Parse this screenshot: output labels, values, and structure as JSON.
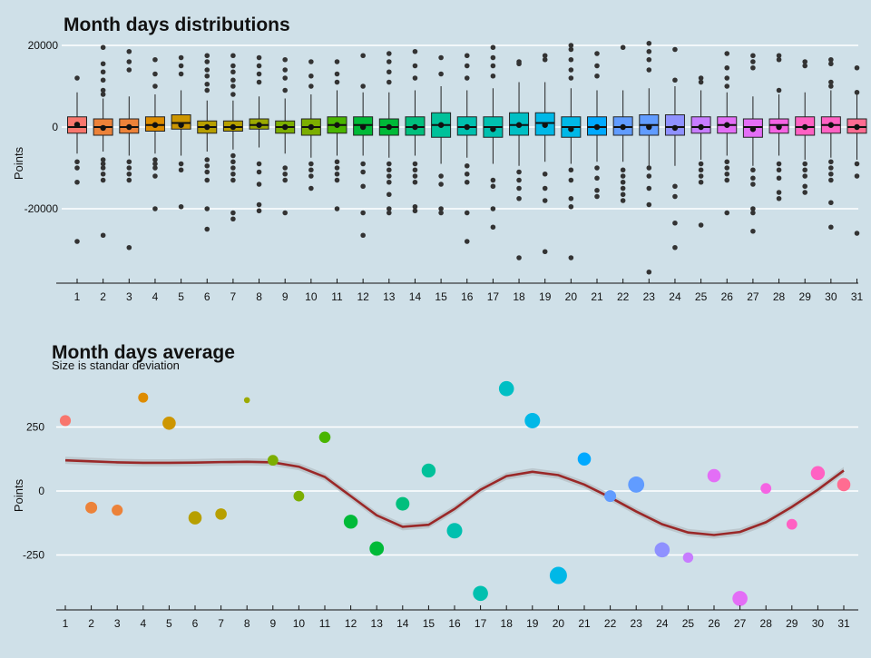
{
  "chart_data": [
    {
      "type": "box",
      "title": "Month days distributions",
      "xlabel": "",
      "ylabel": "Points",
      "ylim": [
        -38000,
        20500
      ],
      "y_ticks": [
        20000,
        0,
        -20000
      ],
      "y_tick_labels": [
        "20000",
        "0",
        "-20000"
      ],
      "grid": "horizontal",
      "legend": "none",
      "categories": [
        "1",
        "2",
        "3",
        "4",
        "5",
        "6",
        "7",
        "8",
        "9",
        "10",
        "11",
        "12",
        "13",
        "14",
        "15",
        "16",
        "17",
        "18",
        "19",
        "20",
        "21",
        "22",
        "23",
        "24",
        "25",
        "26",
        "27",
        "28",
        "29",
        "30",
        "31"
      ],
      "boxes": [
        {
          "q1": -1500,
          "median": 0,
          "q3": 2500,
          "whisker_low": -6500,
          "whisker_high": 8500,
          "mean": 600,
          "outliers": [
            12000,
            -8500,
            -10000,
            -13500,
            -28000
          ]
        },
        {
          "q1": -2000,
          "median": 0,
          "q3": 2000,
          "whisker_low": -6000,
          "whisker_high": 7000,
          "mean": -200,
          "outliers": [
            19500,
            15500,
            13500,
            11500,
            9000,
            8000,
            -8000,
            -9000,
            -10000,
            -11500,
            -13000,
            -26500
          ]
        },
        {
          "q1": -1500,
          "median": 0,
          "q3": 2000,
          "whisker_low": -7000,
          "whisker_high": 7500,
          "mean": 0,
          "outliers": [
            18500,
            16000,
            14000,
            -8500,
            -10000,
            -11500,
            -13000,
            -29500
          ]
        },
        {
          "q1": -1000,
          "median": 500,
          "q3": 2500,
          "whisker_low": -6500,
          "whisker_high": 8000,
          "mean": 500,
          "outliers": [
            16500,
            13000,
            10000,
            -8000,
            -9000,
            -10000,
            -12000,
            -20000
          ]
        },
        {
          "q1": -500,
          "median": 1000,
          "q3": 3000,
          "whisker_low": -7000,
          "whisker_high": 9000,
          "mean": 500,
          "outliers": [
            17000,
            15000,
            13000,
            -9000,
            -10500,
            -19500
          ]
        },
        {
          "q1": -1500,
          "median": 0,
          "q3": 1500,
          "whisker_low": -6000,
          "whisker_high": 6500,
          "mean": 0,
          "outliers": [
            17500,
            16000,
            14000,
            12500,
            10500,
            9000,
            -8000,
            -9500,
            -11000,
            -13000,
            -20000,
            -25000
          ]
        },
        {
          "q1": -1000,
          "median": 0,
          "q3": 1500,
          "whisker_low": -5500,
          "whisker_high": 6500,
          "mean": 0,
          "outliers": [
            17500,
            15000,
            13500,
            11500,
            10000,
            8000,
            -7000,
            -8500,
            -10000,
            -11500,
            -13000,
            -21000,
            -22500
          ]
        },
        {
          "q1": -500,
          "median": 500,
          "q3": 2000,
          "whisker_low": -5000,
          "whisker_high": 7500,
          "mean": 500,
          "outliers": [
            17000,
            15000,
            13000,
            11000,
            -9000,
            -11000,
            -14000,
            -19000,
            -20500
          ]
        },
        {
          "q1": -1500,
          "median": 0,
          "q3": 1500,
          "whisker_low": -6500,
          "whisker_high": 7000,
          "mean": 0,
          "outliers": [
            16500,
            14000,
            12000,
            9000,
            -10000,
            -11500,
            -13000,
            -21000
          ]
        },
        {
          "q1": -2000,
          "median": 0,
          "q3": 2000,
          "whisker_low": -7500,
          "whisker_high": 8000,
          "mean": 0,
          "outliers": [
            16000,
            12500,
            10000,
            -9000,
            -10500,
            -12000,
            -15000
          ]
        },
        {
          "q1": -1500,
          "median": 500,
          "q3": 2500,
          "whisker_low": -7000,
          "whisker_high": 9000,
          "mean": 500,
          "outliers": [
            16000,
            13000,
            11000,
            -8500,
            -10000,
            -11500,
            -13000,
            -20000
          ]
        },
        {
          "q1": -2000,
          "median": 500,
          "q3": 2500,
          "whisker_low": -7000,
          "whisker_high": 8500,
          "mean": 0,
          "outliers": [
            17500,
            10000,
            -9000,
            -11000,
            -14500,
            -21000,
            -26500
          ]
        },
        {
          "q1": -2000,
          "median": 0,
          "q3": 2000,
          "whisker_low": -7500,
          "whisker_high": 8500,
          "mean": 0,
          "outliers": [
            18000,
            16000,
            13500,
            11000,
            -9000,
            -10500,
            -12000,
            -13500,
            -16500,
            -20000,
            -21000
          ]
        },
        {
          "q1": -2000,
          "median": 0,
          "q3": 2500,
          "whisker_low": -7000,
          "whisker_high": 9000,
          "mean": 0,
          "outliers": [
            18500,
            15000,
            12000,
            -9000,
            -10500,
            -12000,
            -13500,
            -19500,
            -20500
          ]
        },
        {
          "q1": -2500,
          "median": 500,
          "q3": 3500,
          "whisker_low": -9000,
          "whisker_high": 10000,
          "mean": 500,
          "outliers": [
            17000,
            13000,
            -12000,
            -14000,
            -20000,
            -21000
          ]
        },
        {
          "q1": -2000,
          "median": 0,
          "q3": 2500,
          "whisker_low": -7500,
          "whisker_high": 9000,
          "mean": 0,
          "outliers": [
            17500,
            15000,
            12000,
            -9500,
            -11500,
            -13500,
            -21000,
            -28000
          ]
        },
        {
          "q1": -2500,
          "median": 0,
          "q3": 2500,
          "whisker_low": -9000,
          "whisker_high": 9500,
          "mean": -500,
          "outliers": [
            19500,
            17000,
            15000,
            12500,
            -13000,
            -14500,
            -20000,
            -24500
          ]
        },
        {
          "q1": -2000,
          "median": 500,
          "q3": 3500,
          "whisker_low": -9500,
          "whisker_high": 11000,
          "mean": 500,
          "outliers": [
            16000,
            15500,
            -11000,
            -13000,
            -15000,
            -17500,
            -32000
          ]
        },
        {
          "q1": -2000,
          "median": 1000,
          "q3": 3500,
          "whisker_low": -8500,
          "whisker_high": 11000,
          "mean": 500,
          "outliers": [
            17500,
            16500,
            -11500,
            -15000,
            -18000,
            -30500
          ]
        },
        {
          "q1": -2500,
          "median": 0,
          "q3": 2500,
          "whisker_low": -9000,
          "whisker_high": 9500,
          "mean": -500,
          "outliers": [
            20000,
            19000,
            16500,
            14000,
            12000,
            -10500,
            -13000,
            -17500,
            -19500,
            -32000
          ]
        },
        {
          "q1": -2000,
          "median": 0,
          "q3": 2500,
          "whisker_low": -8500,
          "whisker_high": 9000,
          "mean": 0,
          "outliers": [
            18000,
            15000,
            12500,
            -10000,
            -12500,
            -15500,
            -17000
          ]
        },
        {
          "q1": -2000,
          "median": 0,
          "q3": 2500,
          "whisker_low": -8500,
          "whisker_high": 9000,
          "mean": 0,
          "outliers": [
            19500,
            -10500,
            -12000,
            -13500,
            -15000,
            -16500,
            -18000
          ]
        },
        {
          "q1": -2000,
          "median": 500,
          "q3": 3000,
          "whisker_low": -9500,
          "whisker_high": 9500,
          "mean": 0,
          "outliers": [
            20500,
            18500,
            16500,
            14000,
            -10000,
            -12000,
            -15000,
            -19000,
            -35500
          ]
        },
        {
          "q1": -2000,
          "median": 0,
          "q3": 3000,
          "whisker_low": -9500,
          "whisker_high": 10000,
          "mean": -200,
          "outliers": [
            19000,
            11500,
            -14500,
            -17000,
            -23500,
            -29500
          ]
        },
        {
          "q1": -1500,
          "median": 0,
          "q3": 2500,
          "whisker_low": -8000,
          "whisker_high": 9000,
          "mean": 0,
          "outliers": [
            12000,
            11000,
            -9000,
            -10500,
            -12000,
            -13500,
            -24000
          ]
        },
        {
          "q1": -1500,
          "median": 500,
          "q3": 2500,
          "whisker_low": -7000,
          "whisker_high": 8500,
          "mean": 500,
          "outliers": [
            18000,
            14500,
            12000,
            10000,
            -8500,
            -10000,
            -11500,
            -13000,
            -21000
          ]
        },
        {
          "q1": -2500,
          "median": 0,
          "q3": 2000,
          "whisker_low": -9500,
          "whisker_high": 7500,
          "mean": -500,
          "outliers": [
            17500,
            16000,
            14500,
            -10500,
            -12500,
            -14000,
            -20000,
            -21000,
            -25500
          ]
        },
        {
          "q1": -1500,
          "median": 500,
          "q3": 2000,
          "whisker_low": -7000,
          "whisker_high": 8000,
          "mean": 0,
          "outliers": [
            17500,
            16500,
            9000,
            -9000,
            -10500,
            -12500,
            -16000,
            -17500
          ]
        },
        {
          "q1": -2000,
          "median": 0,
          "q3": 2500,
          "whisker_low": -8000,
          "whisker_high": 8500,
          "mean": 0,
          "outliers": [
            16000,
            15000,
            -9000,
            -10500,
            -12000,
            -14500,
            -16000
          ]
        },
        {
          "q1": -1500,
          "median": 500,
          "q3": 2500,
          "whisker_low": -7500,
          "whisker_high": 9000,
          "mean": 500,
          "outliers": [
            16500,
            15500,
            11000,
            10000,
            -8500,
            -10000,
            -11500,
            -13000,
            -18500,
            -24500
          ]
        },
        {
          "q1": -1500,
          "median": 0,
          "q3": 2000,
          "whisker_low": -8000,
          "whisker_high": 8000,
          "mean": 0,
          "outliers": [
            14500,
            8500,
            -9000,
            -12000,
            -26000
          ]
        }
      ]
    },
    {
      "type": "scatter",
      "title": "Month days average",
      "subtitle": "Size is standar deviation",
      "xlabel": "",
      "ylabel": "Points",
      "ylim": [
        -450,
        430
      ],
      "y_ticks": [
        250,
        0,
        -250
      ],
      "y_tick_labels": [
        "250",
        "0",
        "-250"
      ],
      "grid": "horizontal",
      "legend": "none",
      "categories": [
        "1",
        "2",
        "3",
        "4",
        "5",
        "6",
        "7",
        "8",
        "9",
        "10",
        "11",
        "12",
        "13",
        "14",
        "15",
        "16",
        "17",
        "18",
        "19",
        "20",
        "21",
        "22",
        "23",
        "24",
        "25",
        "26",
        "27",
        "28",
        "29",
        "30",
        "31"
      ],
      "points": [
        {
          "x": 1,
          "y": 275,
          "sd": 4800
        },
        {
          "x": 2,
          "y": -65,
          "sd": 5000
        },
        {
          "x": 3,
          "y": -75,
          "sd": 4800
        },
        {
          "x": 4,
          "y": 365,
          "sd": 4500
        },
        {
          "x": 5,
          "y": 265,
          "sd": 5400
        },
        {
          "x": 6,
          "y": -105,
          "sd": 5400
        },
        {
          "x": 7,
          "y": -90,
          "sd": 4900
        },
        {
          "x": 8,
          "y": 355,
          "sd": 3400
        },
        {
          "x": 9,
          "y": 120,
          "sd": 4700
        },
        {
          "x": 10,
          "y": -20,
          "sd": 4700
        },
        {
          "x": 11,
          "y": 210,
          "sd": 4900
        },
        {
          "x": 12,
          "y": -120,
          "sd": 5600
        },
        {
          "x": 13,
          "y": -225,
          "sd": 5700
        },
        {
          "x": 14,
          "y": -50,
          "sd": 5500
        },
        {
          "x": 15,
          "y": 80,
          "sd": 5600
        },
        {
          "x": 16,
          "y": -155,
          "sd": 6000
        },
        {
          "x": 17,
          "y": -400,
          "sd": 5900
        },
        {
          "x": 18,
          "y": 400,
          "sd": 5900
        },
        {
          "x": 19,
          "y": 275,
          "sd": 6000
        },
        {
          "x": 20,
          "y": -330,
          "sd": 6500
        },
        {
          "x": 21,
          "y": 125,
          "sd": 5400
        },
        {
          "x": 22,
          "y": -20,
          "sd": 5000
        },
        {
          "x": 23,
          "y": 25,
          "sd": 6200
        },
        {
          "x": 24,
          "y": -230,
          "sd": 5900
        },
        {
          "x": 25,
          "y": -260,
          "sd": 4600
        },
        {
          "x": 26,
          "y": 60,
          "sd": 5400
        },
        {
          "x": 27,
          "y": -420,
          "sd": 5900
        },
        {
          "x": 28,
          "y": 10,
          "sd": 4700
        },
        {
          "x": 29,
          "y": -130,
          "sd": 4700
        },
        {
          "x": 30,
          "y": 70,
          "sd": 5600
        },
        {
          "x": 31,
          "y": 25,
          "sd": 5400
        }
      ],
      "smooth_line": [
        120,
        116,
        112,
        110,
        110,
        111,
        113,
        114,
        112,
        95,
        55,
        -20,
        -95,
        -140,
        -132,
        -70,
        5,
        58,
        75,
        62,
        25,
        -25,
        -80,
        -130,
        -162,
        -172,
        -160,
        -122,
        -62,
        5,
        80
      ],
      "smooth_line_color": "#9a2828",
      "confidence_band_color": "#b8c2c8"
    }
  ],
  "colors": {
    "background": "#cfe0e8",
    "grid": "#ffffff",
    "axis": "#111111",
    "outlier": "#333333",
    "palette": [
      "#f8766d",
      "#ec8239",
      "#de8c00",
      "#cd9600",
      "#b79f00",
      "#9caa00",
      "#7cae00",
      "#49b500",
      "#00ba38",
      "#00bf7d",
      "#00c19a",
      "#00c0af",
      "#00bfc4",
      "#00b8e7",
      "#00a9ff",
      "#619cff",
      "#8f91ff",
      "#c77cff",
      "#e36ef6",
      "#f564e3",
      "#ff61c3",
      "#ff6c91"
    ]
  }
}
